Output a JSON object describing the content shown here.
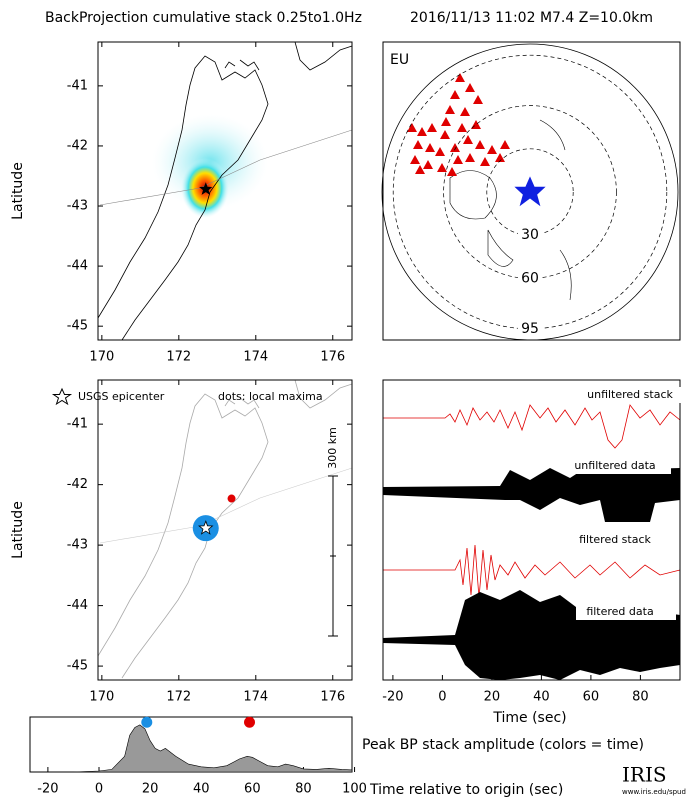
{
  "chart_data": [
    {
      "type": "map",
      "title": "BackProjection cumulative stack 0.25to1.0Hz",
      "ylabel": "Latitude",
      "xlim": [
        169.9,
        176.5
      ],
      "xticks": [
        170,
        172,
        174,
        176
      ],
      "ylim": [
        -45.23,
        -40.27
      ],
      "yticks": [
        -41,
        -42,
        -43,
        -44,
        -45
      ],
      "points": [
        {
          "lon": 172.7,
          "lat": -42.72,
          "color": "#000000"
        }
      ]
    },
    {
      "type": "polar",
      "title": "2016/11/13 11:02  M7.4  Z=10.0km",
      "label": "EU",
      "rings": [
        30,
        60,
        95
      ]
    },
    {
      "type": "map",
      "ylabel": "Latitude",
      "legend": [
        "USGS epicenter",
        "dots: local maxima"
      ],
      "scale_bar": "300 km",
      "xlim": [
        169.9,
        176.5
      ],
      "xticks": [
        170,
        172,
        174,
        176
      ],
      "ylim": [
        -45.23,
        -40.27
      ],
      "yticks": [
        -41,
        -42,
        -43,
        -44,
        -45
      ],
      "points": [
        {
          "lon": 172.7,
          "lat": -42.72,
          "color": "#1a8fe3"
        },
        {
          "lon": 173.37,
          "lat": -42.23,
          "color": "#e00000"
        }
      ]
    },
    {
      "type": "waveform",
      "xlabel": "Time (sec)",
      "traces": [
        "unfiltered stack",
        "unfiltered data",
        "filtered stack",
        "filtered data"
      ],
      "xlim": [
        -24,
        96
      ],
      "xticks": [
        -20,
        0,
        20,
        40,
        60,
        80
      ]
    },
    {
      "type": "area",
      "title": "Peak BP stack amplitude (colors = time)",
      "xlabel": "Time relative to origin (sec)",
      "xlim": [
        -27,
        99
      ],
      "xticks": [
        -20,
        0,
        20,
        40,
        60,
        80,
        100
      ],
      "ylim": [
        0,
        1.05
      ],
      "color": "#999999",
      "x": [
        -27,
        -20,
        -10,
        0,
        5,
        10,
        12,
        14,
        16,
        18,
        20,
        22,
        24,
        26,
        30,
        35,
        40,
        45,
        50,
        55,
        58,
        60,
        63,
        66,
        70,
        73,
        76,
        80,
        85,
        90,
        95,
        99
      ],
      "values": [
        0,
        0,
        0,
        0.02,
        0.05,
        0.3,
        0.7,
        0.85,
        0.9,
        0.82,
        0.6,
        0.45,
        0.4,
        0.45,
        0.3,
        0.15,
        0.1,
        0.08,
        0.12,
        0.25,
        0.3,
        0.28,
        0.2,
        0.12,
        0.1,
        0.15,
        0.12,
        0.06,
        0.05,
        0.07,
        0.05,
        0.04
      ],
      "points": [
        {
          "x": 18.7,
          "y": 0.95,
          "color": "#1a8fe3"
        },
        {
          "x": 58.9,
          "y": 0.95,
          "color": "#e00000"
        }
      ]
    }
  ],
  "logo": {
    "name": "IRIS",
    "url": "www.iris.edu/spud"
  }
}
